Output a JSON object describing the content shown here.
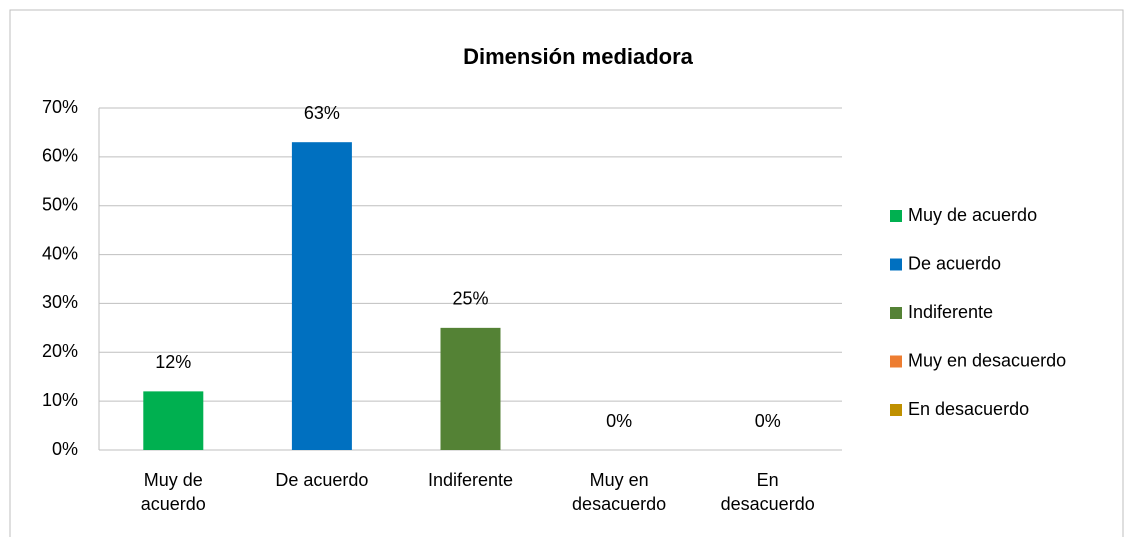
{
  "chart_data": {
    "type": "bar",
    "title": "Dimensión mediadora",
    "categories": [
      "Muy de acuerdo",
      "De acuerdo",
      "Indiferente",
      "Muy en desacuerdo",
      "En desacuerdo"
    ],
    "values": [
      12,
      63,
      25,
      0,
      0
    ],
    "value_labels": [
      "12%",
      "63%",
      "25%",
      "0%",
      "0%"
    ],
    "colors": [
      "#00b050",
      "#0070c0",
      "#548235",
      "#ed7d31",
      "#bf9000"
    ],
    "ylim": [
      0,
      70
    ],
    "yticks": [
      {
        "value": 0,
        "label": "0%"
      },
      {
        "value": 10,
        "label": "10%"
      },
      {
        "value": 20,
        "label": "20%"
      },
      {
        "value": 30,
        "label": "30%"
      },
      {
        "value": 40,
        "label": "40%"
      },
      {
        "value": 50,
        "label": "50%"
      },
      {
        "value": 60,
        "label": "60%"
      },
      {
        "value": 70,
        "label": "70%"
      }
    ],
    "grid": true,
    "legend": "right"
  }
}
